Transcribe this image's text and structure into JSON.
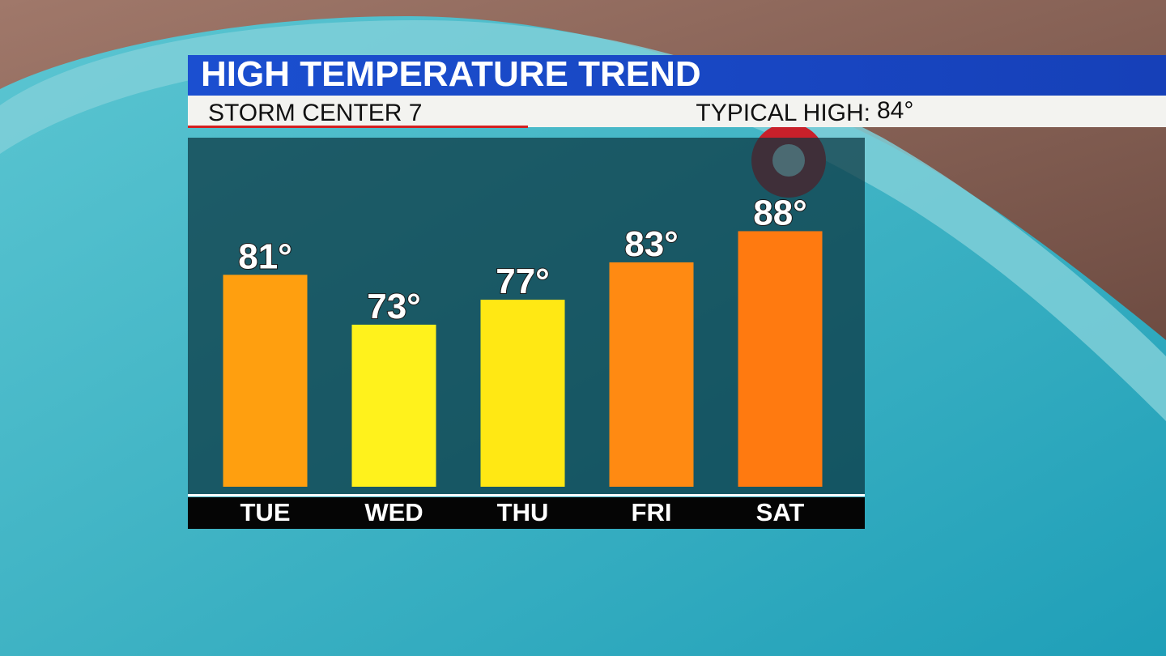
{
  "chart_data": {
    "type": "bar",
    "title": "HIGH TEMPERATURE TREND",
    "subtitle": "STORM CENTER 7",
    "typical_high_label": "TYPICAL HIGH:",
    "typical_high_value": "84°",
    "categories": [
      "TUE",
      "WED",
      "THU",
      "FRI",
      "SAT"
    ],
    "values": [
      81,
      73,
      77,
      83,
      88
    ],
    "value_labels": [
      "81°",
      "73°",
      "77°",
      "83°",
      "88°"
    ],
    "colors": [
      "#ff9f0f",
      "#fff21c",
      "#ffe814",
      "#ff8a12",
      "#ff7a10"
    ],
    "ylim": [
      47,
      103
    ]
  }
}
